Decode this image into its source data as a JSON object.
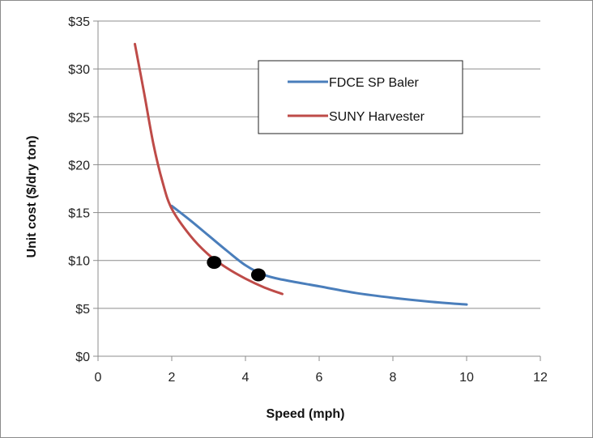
{
  "chart_data": {
    "type": "line",
    "xlabel": "Speed (mph)",
    "ylabel": "Unit cost ($/dry ton)",
    "xlim": [
      0,
      12
    ],
    "ylim": [
      0,
      35
    ],
    "x_ticks": [
      0,
      2,
      4,
      6,
      8,
      10,
      12
    ],
    "y_ticks": [
      0,
      5,
      10,
      15,
      20,
      25,
      30,
      35
    ],
    "y_tick_labels": [
      "$0",
      "$5",
      "$10",
      "$15",
      "$20",
      "$25",
      "$30",
      "$35"
    ],
    "grid": "horizontal",
    "legend_position": "top-right",
    "series": [
      {
        "name": "FDCE SP Baler",
        "color": "#4a7ebb",
        "points": [
          [
            2.0,
            15.7
          ],
          [
            2.5,
            14.2
          ],
          [
            3.0,
            12.6
          ],
          [
            3.5,
            11.0
          ],
          [
            4.0,
            9.5
          ],
          [
            4.5,
            8.5
          ],
          [
            5.0,
            8.0
          ],
          [
            6.0,
            7.3
          ],
          [
            7.0,
            6.6
          ],
          [
            8.0,
            6.1
          ],
          [
            9.0,
            5.7
          ],
          [
            10.0,
            5.4
          ]
        ]
      },
      {
        "name": "SUNY Harvester",
        "color": "#be4b48",
        "points": [
          [
            1.0,
            32.6
          ],
          [
            1.25,
            27.5
          ],
          [
            1.5,
            22.2
          ],
          [
            1.75,
            18.2
          ],
          [
            2.0,
            15.4
          ],
          [
            2.5,
            12.6
          ],
          [
            3.0,
            10.6
          ],
          [
            3.5,
            9.2
          ],
          [
            4.0,
            8.1
          ],
          [
            4.5,
            7.2
          ],
          [
            5.0,
            6.5
          ]
        ]
      }
    ],
    "markers": [
      {
        "x": 3.15,
        "y": 9.8
      },
      {
        "x": 4.35,
        "y": 8.5
      }
    ],
    "marker_color": "#000000"
  }
}
